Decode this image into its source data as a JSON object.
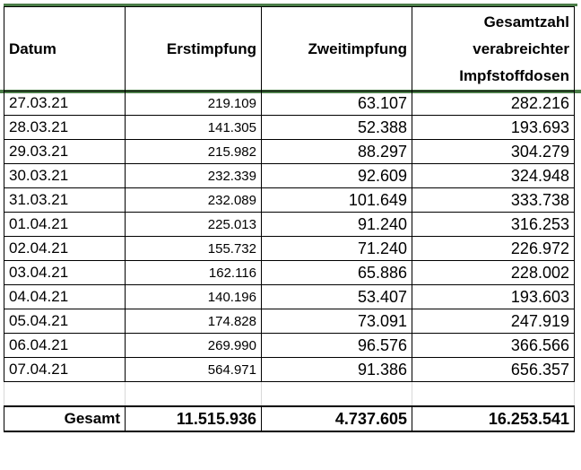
{
  "table": {
    "headers": {
      "datum": "Datum",
      "erst": "Erstimpfung",
      "zweit": "Zweitimpfung",
      "gesamt_line1": "Gesamtzahl",
      "gesamt_line2": "verabreichter",
      "gesamt_line3": "Impfstoffdosen"
    },
    "rows": [
      {
        "datum": "27.03.21",
        "erst": "219.109",
        "zweit": "63.107",
        "gesamt": "282.216"
      },
      {
        "datum": "28.03.21",
        "erst": "141.305",
        "zweit": "52.388",
        "gesamt": "193.693"
      },
      {
        "datum": "29.03.21",
        "erst": "215.982",
        "zweit": "88.297",
        "gesamt": "304.279"
      },
      {
        "datum": "30.03.21",
        "erst": "232.339",
        "zweit": "92.609",
        "gesamt": "324.948"
      },
      {
        "datum": "31.03.21",
        "erst": "232.089",
        "zweit": "101.649",
        "gesamt": "333.738"
      },
      {
        "datum": "01.04.21",
        "erst": "225.013",
        "zweit": "91.240",
        "gesamt": "316.253"
      },
      {
        "datum": "02.04.21",
        "erst": "155.732",
        "zweit": "71.240",
        "gesamt": "226.972"
      },
      {
        "datum": "03.04.21",
        "erst": "162.116",
        "zweit": "65.886",
        "gesamt": "228.002"
      },
      {
        "datum": "04.04.21",
        "erst": "140.196",
        "zweit": "53.407",
        "gesamt": "193.603"
      },
      {
        "datum": "05.04.21",
        "erst": "174.828",
        "zweit": "73.091",
        "gesamt": "247.919"
      },
      {
        "datum": "06.04.21",
        "erst": "269.990",
        "zweit": "96.576",
        "gesamt": "366.566"
      },
      {
        "datum": "07.04.21",
        "erst": "564.971",
        "zweit": "91.386",
        "gesamt": "656.357"
      }
    ],
    "total": {
      "label": "Gesamt",
      "erst": "11.515.936",
      "zweit": "4.737.605",
      "gesamt": "16.253.541"
    }
  },
  "colors": {
    "header_rule": "#4a7c47",
    "grid": "#000000"
  }
}
